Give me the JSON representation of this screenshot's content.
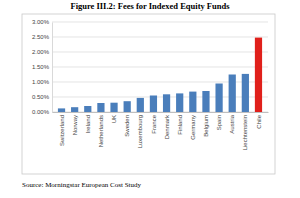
{
  "chart_data": {
    "type": "bar",
    "title": "Figure III.2: Fees for Indexed Equity Funds",
    "annotations": [
      "Source: Morningstar European Cost Study"
    ],
    "categories": [
      "Switzerland",
      "Norway",
      "Ireland",
      "Netherlands",
      "UK",
      "Sweden",
      "Luxembourg",
      "France",
      "Denmark",
      "Finland",
      "Germany",
      "Belgium",
      "Spain",
      "Austria",
      "Liechtenstein",
      "Chile"
    ],
    "values": [
      0.12,
      0.16,
      0.2,
      0.3,
      0.31,
      0.36,
      0.47,
      0.55,
      0.59,
      0.62,
      0.68,
      0.7,
      0.95,
      1.25,
      1.27,
      2.48
    ],
    "colors": [
      "#4a7ebb",
      "#4a7ebb",
      "#4a7ebb",
      "#4a7ebb",
      "#4a7ebb",
      "#4a7ebb",
      "#4a7ebb",
      "#4a7ebb",
      "#4a7ebb",
      "#4a7ebb",
      "#4a7ebb",
      "#4a7ebb",
      "#4a7ebb",
      "#4a7ebb",
      "#4a7ebb",
      "#e0201b"
    ],
    "ylim": [
      0,
      3
    ],
    "yticks": [
      {
        "value": 0,
        "label": "0.00%"
      },
      {
        "value": 0.5,
        "label": "0.50%"
      },
      {
        "value": 1,
        "label": "1.00%"
      },
      {
        "value": 1.5,
        "label": "1.50%"
      },
      {
        "value": 2,
        "label": "2.00%"
      },
      {
        "value": 2.5,
        "label": "2.50%"
      },
      {
        "value": 3,
        "label": "3.00%"
      }
    ],
    "grid": true
  }
}
